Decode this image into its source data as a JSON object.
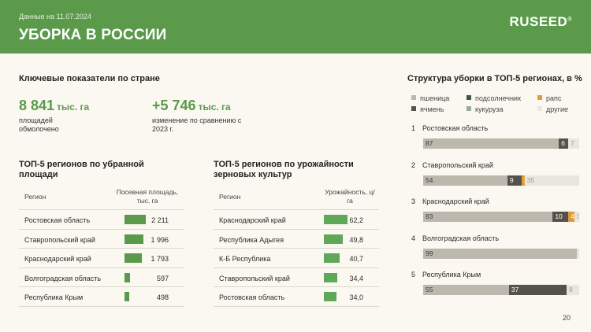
{
  "header": {
    "date": "Данные на 11.07.2024",
    "title": "УБОРКА В РОССИИ",
    "logo": "RUSEED",
    "logo_mark": "®"
  },
  "kpi": {
    "section_title": "Ключевые показатели по стране",
    "area": {
      "value": "8 841",
      "unit": "тыс. га",
      "caption": "площадей обмолочено"
    },
    "diff": {
      "value": "+5 746",
      "unit": "тыс. га",
      "caption": "изменение по сравнению с 2023 г."
    }
  },
  "table_area": {
    "title": "ТОП-5 регионов по убранной площади",
    "col_region": "Регион",
    "col_value": "Посевная площадь, тыс. га",
    "rows": [
      {
        "name": "Ростовская область",
        "value": "2 211",
        "num": 2211
      },
      {
        "name": "Ставропольский край",
        "value": "1 996",
        "num": 1996
      },
      {
        "name": "Краснодарский край",
        "value": "1 793",
        "num": 1793
      },
      {
        "name": "Волгоградская область",
        "value": "597",
        "num": 597
      },
      {
        "name": "Республика Крым",
        "value": "498",
        "num": 498
      }
    ]
  },
  "table_yield": {
    "title": "ТОП-5 регионов по урожайности зерновых культур",
    "col_region": "Регион",
    "col_value": "Урожайность, ц/га",
    "rows": [
      {
        "name": "Краснодарский край",
        "value": "62,2",
        "num": 62.2
      },
      {
        "name": "Республика Адыгея",
        "value": "49,8",
        "num": 49.8
      },
      {
        "name": "К-Б Республика",
        "value": "40,7",
        "num": 40.7
      },
      {
        "name": "Ставропольский край",
        "value": "34,4",
        "num": 34.4
      },
      {
        "name": "Ростовская область",
        "value": "34,0",
        "num": 34.0
      }
    ]
  },
  "structure": {
    "title": "Структура уборки в ТОП-5 регионах, в %",
    "legend": [
      {
        "label": "пшеница",
        "color": "#bdb8ad"
      },
      {
        "label": "подсолнечник",
        "color": "#3c5a3a"
      },
      {
        "label": "рапс",
        "color": "#e39a3b"
      },
      {
        "label": "ячмень",
        "color": "#55524b"
      },
      {
        "label": "кукуруза",
        "color": "#9ca89a"
      },
      {
        "label": "другие",
        "color": "#e8e6dd"
      }
    ],
    "regions": [
      {
        "num": "1",
        "name": "Ростовская область",
        "segments": [
          {
            "value": 87,
            "label": "87",
            "color": "#bdb8ad",
            "text": "#3a3a3a"
          },
          {
            "value": 6,
            "label": "6",
            "color": "#55524b",
            "text": "#ffffff"
          },
          {
            "value": 7,
            "label": "7",
            "color": "#e8e6dd",
            "text": "#9a9a9a"
          }
        ]
      },
      {
        "num": "2",
        "name": "Ставропольский край",
        "segments": [
          {
            "value": 54,
            "label": "54",
            "color": "#bdb8ad",
            "text": "#3a3a3a"
          },
          {
            "value": 9,
            "label": "9",
            "color": "#55524b",
            "text": "#ffffff"
          },
          {
            "value": 2,
            "label": "2",
            "color": "#e39a3b",
            "text": "#ffffff"
          },
          {
            "value": 35,
            "label": "35",
            "color": "#e8e6dd",
            "text": "#9a9a9a"
          }
        ]
      },
      {
        "num": "3",
        "name": "Краснодарский край",
        "segments": [
          {
            "value": 83,
            "label": "83",
            "color": "#bdb8ad",
            "text": "#3a3a3a"
          },
          {
            "value": 10,
            "label": "10",
            "color": "#55524b",
            "text": "#ffffff"
          },
          {
            "value": 4,
            "label": "4",
            "color": "#e39a3b",
            "text": "#ffffff"
          },
          {
            "value": 3,
            "label": "3",
            "color": "#e8e6dd",
            "text": "#9a9a9a"
          }
        ]
      },
      {
        "num": "4",
        "name": "Волгоградская область",
        "segments": [
          {
            "value": 99,
            "label": "99",
            "color": "#bdb8ad",
            "text": "#3a3a3a"
          },
          {
            "value": 1,
            "label": "",
            "color": "#e8e6dd",
            "text": "#9a9a9a"
          }
        ]
      },
      {
        "num": "5",
        "name": "Республика Крым",
        "segments": [
          {
            "value": 55,
            "label": "55",
            "color": "#bdb8ad",
            "text": "#3a3a3a"
          },
          {
            "value": 37,
            "label": "37",
            "color": "#55524b",
            "text": "#ffffff"
          },
          {
            "value": 8,
            "label": "8",
            "color": "#e8e6dd",
            "text": "#9a9a9a"
          }
        ]
      }
    ]
  },
  "page_number": "20"
}
